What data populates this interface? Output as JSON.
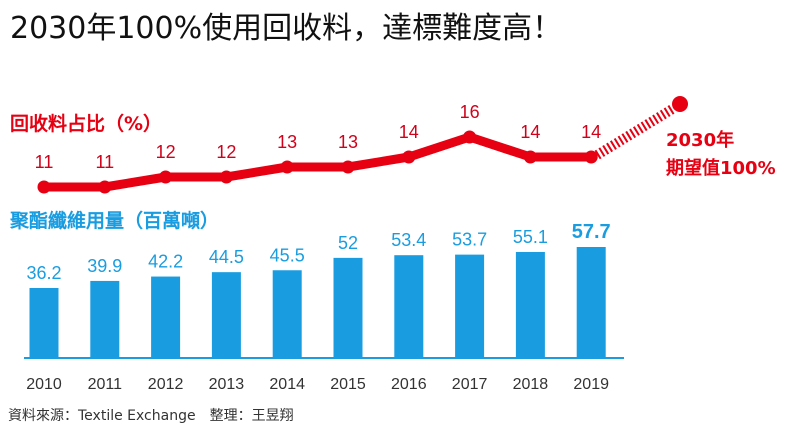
{
  "title": "2030年100%使用回收料，達標難度高！",
  "source": "資料來源：Textile Exchange　整理：王昱翔",
  "colors": {
    "red": "#e60012",
    "blue": "#1a9de0"
  },
  "chart_data": {
    "type": "bar+line",
    "categories": [
      "2010",
      "2011",
      "2012",
      "2013",
      "2014",
      "2015",
      "2016",
      "2017",
      "2018",
      "2019"
    ],
    "series": [
      {
        "name": "聚酯纖維用量（百萬噸）",
        "type": "bar",
        "values": [
          36.2,
          39.9,
          42.2,
          44.5,
          45.5,
          52,
          53.4,
          53.7,
          55.1,
          57.7
        ],
        "labels": [
          "36.2",
          "39.9",
          "42.2",
          "44.5",
          "45.5",
          "52",
          "53.4",
          "53.7",
          "55.1",
          "57.7"
        ]
      },
      {
        "name": "回收料占比（%）",
        "type": "line",
        "values": [
          11,
          11,
          12,
          12,
          13,
          13,
          14,
          16,
          14,
          14
        ],
        "labels": [
          "11",
          "11",
          "12",
          "12",
          "13",
          "13",
          "14",
          "16",
          "14",
          "14"
        ]
      }
    ],
    "target": {
      "line1": "2030年",
      "line2": "期望值100%",
      "value": 100
    },
    "bar_ylim": [
      0,
      60
    ],
    "line_ylim": [
      10,
      17
    ]
  }
}
